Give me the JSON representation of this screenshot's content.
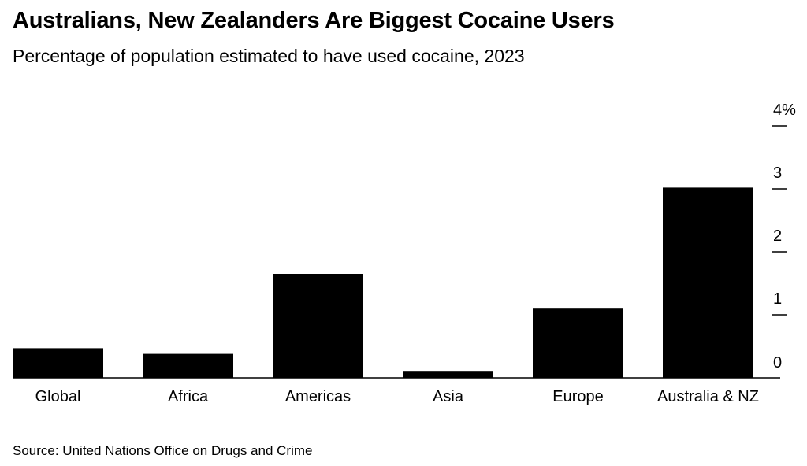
{
  "header": {
    "title": "Australians, New Zealanders Are Biggest Cocaine Users",
    "subtitle": "Percentage of population estimated to have used cocaine, 2023"
  },
  "footer": {
    "source": "Source: United Nations Office on Drugs and Crime"
  },
  "chart_data": {
    "type": "bar",
    "title": "Australians, New Zealanders Are Biggest Cocaine Users",
    "subtitle": "Percentage of population estimated to have used cocaine, 2023",
    "categories": [
      "Global",
      "Africa",
      "Americas",
      "Asia",
      "Europe",
      "Australia & NZ"
    ],
    "values": [
      0.47,
      0.38,
      1.65,
      0.11,
      1.11,
      3.02
    ],
    "unit": "%",
    "ylim": [
      0,
      4
    ],
    "yticks": [
      0,
      1,
      2,
      3,
      4
    ],
    "ytick_labels": [
      "0",
      "1",
      "2",
      "3",
      "4%"
    ],
    "yaxis_position": "right",
    "grid": false,
    "legend": "none",
    "bar_color": "#000000"
  }
}
